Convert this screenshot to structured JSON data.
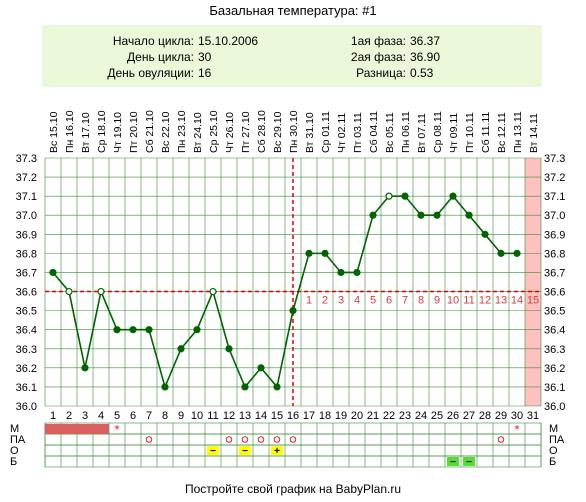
{
  "title": "Базальная температура: #1",
  "info": {
    "left": [
      {
        "label": "Начало цикла:",
        "value": "15.10.2006"
      },
      {
        "label": "День цикла:",
        "value": "30"
      },
      {
        "label": "День овуляции:",
        "value": "16"
      }
    ],
    "right": [
      {
        "label": "1ая фаза:",
        "value": "36.37"
      },
      {
        "label": "2ая фаза:",
        "value": "36.90"
      },
      {
        "label": "Разница:",
        "value": "0.53"
      }
    ]
  },
  "footer": "Постройте свой график на BabyPlan.ru",
  "colors": {
    "line": "#006400",
    "grid": "#3c8c3c",
    "info_bg": "#eaf7d8",
    "today_fill": "#ffc0c0",
    "marker_red": "#e02020",
    "menstruation": "#d96060",
    "sex_yellow": "#ffff00",
    "test_green": "#55dd33"
  },
  "chart_data": {
    "type": "line",
    "title": "Базальная температура: #1",
    "dates": [
      "Вс 15.10",
      "Пн 16.10",
      "Вт 17.10",
      "Ср 18.10",
      "Чт 19.10",
      "Пт 20.10",
      "Сб 21.10",
      "Вс 22.10",
      "Пн 23.10",
      "Вт 24.10",
      "Ср 25.10",
      "Чт 26.10",
      "Пт 27.10",
      "Сб 28.10",
      "Вс 29.10",
      "Пн 30.10",
      "Вт 31.10",
      "Ср 01.11",
      "Чт 02.11",
      "Пт 03.11",
      "Сб 04.11",
      "Вс 05.11",
      "Пн 06.11",
      "Вт 07.11",
      "Ср 08.11",
      "Чт 09.11",
      "Пт 10.11",
      "Сб 11.11",
      "Вс 12.11",
      "Пн 13.11",
      "Вт 14.11"
    ],
    "days": [
      "1",
      "2",
      "3",
      "4",
      "5",
      "6",
      "7",
      "8",
      "9",
      "10",
      "11",
      "12",
      "13",
      "14",
      "15",
      "16",
      "17",
      "18",
      "19",
      "20",
      "21",
      "22",
      "23",
      "24",
      "25",
      "26",
      "27",
      "28",
      "29",
      "30",
      "31"
    ],
    "ylim": [
      36.0,
      37.3
    ],
    "yticks": [
      "36.0",
      "36.1",
      "36.2",
      "36.3",
      "36.4",
      "36.5",
      "36.6",
      "36.7",
      "36.8",
      "36.9",
      "37.0",
      "37.1",
      "37.2",
      "37.3"
    ],
    "temperatures": [
      36.7,
      36.6,
      36.2,
      36.6,
      36.4,
      36.4,
      36.4,
      36.1,
      36.3,
      36.4,
      36.6,
      36.3,
      36.1,
      36.2,
      36.1,
      36.5,
      36.8,
      36.8,
      36.7,
      36.7,
      37.0,
      37.1,
      37.1,
      37.0,
      37.0,
      37.1,
      37.0,
      36.9,
      36.8,
      36.8
    ],
    "open_points": [
      2,
      4,
      11,
      22
    ],
    "ovulation_day": 16,
    "coverline": 36.6,
    "current_day": 31,
    "phase2_labels": [
      "1",
      "2",
      "3",
      "4",
      "5",
      "6",
      "7",
      "8",
      "9",
      "10",
      "11",
      "12",
      "13",
      "14",
      "15"
    ],
    "grid": true,
    "legend_rows": [
      "М",
      "ПА",
      "О",
      "Б"
    ],
    "rows": {
      "M_bar_days": [
        1,
        2,
        3,
        4
      ],
      "M_star_days": [
        5,
        30
      ],
      "PA_circle_days": [
        7,
        12,
        13,
        14,
        15,
        16,
        29
      ],
      "O_marks": [
        {
          "day": 11,
          "symbol": "−"
        },
        {
          "day": 13,
          "symbol": "−"
        },
        {
          "day": 15,
          "symbol": "+"
        }
      ],
      "B_marks": [
        {
          "day": 26,
          "symbol": "−"
        },
        {
          "day": 27,
          "symbol": "−"
        }
      ]
    }
  }
}
